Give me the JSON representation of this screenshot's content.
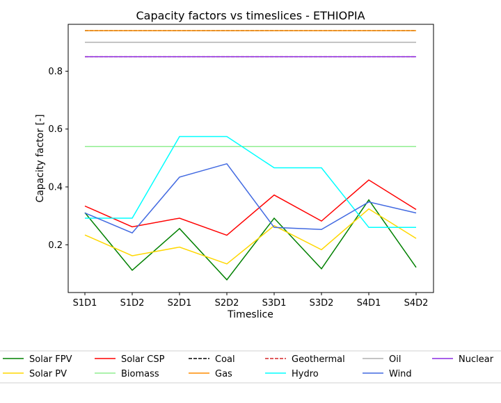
{
  "chart_data": {
    "type": "line",
    "title": "Capacity factors vs timeslices - ETHIOPIA",
    "xlabel": "Timeslice",
    "ylabel": "Capacity factor [-]",
    "categories": [
      "S1D1",
      "S1D2",
      "S2D1",
      "S2D2",
      "S3D1",
      "S3D2",
      "S4D1",
      "S4D2"
    ],
    "ylim": [
      0.035,
      0.962
    ],
    "yticks": [
      0.2,
      0.4,
      0.6,
      0.8
    ],
    "ytick_labels": [
      "0.2",
      "0.4",
      "0.6",
      "0.8"
    ],
    "grid": false,
    "legend_position": "bottom",
    "series": [
      {
        "name": "Solar FPV",
        "color": "#008000",
        "dash": "solid",
        "values": [
          0.311,
          0.112,
          0.256,
          0.079,
          0.292,
          0.117,
          0.355,
          0.122
        ]
      },
      {
        "name": "Solar PV",
        "color": "#ffd700",
        "dash": "solid",
        "values": [
          0.234,
          0.162,
          0.192,
          0.134,
          0.266,
          0.183,
          0.324,
          0.222
        ]
      },
      {
        "name": "Solar CSP",
        "color": "#ff0000",
        "dash": "solid",
        "values": [
          0.334,
          0.262,
          0.292,
          0.233,
          0.372,
          0.282,
          0.424,
          0.322
        ]
      },
      {
        "name": "Biomass",
        "color": "#90ee90",
        "dash": "solid",
        "values": [
          0.54,
          0.54,
          0.54,
          0.54,
          0.54,
          0.54,
          0.54,
          0.54
        ]
      },
      {
        "name": "Coal",
        "color": "#000000",
        "dash": "dashed",
        "values": [
          0.94,
          0.94,
          0.94,
          0.94,
          0.94,
          0.94,
          0.94,
          0.94
        ]
      },
      {
        "name": "Gas",
        "color": "#ff8c00",
        "dash": "solid",
        "values": [
          0.94,
          0.94,
          0.94,
          0.94,
          0.94,
          0.94,
          0.94,
          0.94
        ]
      },
      {
        "name": "Geothermal",
        "color": "#d62728",
        "dash": "dashed",
        "values": [
          0.85,
          0.85,
          0.85,
          0.85,
          0.85,
          0.85,
          0.85,
          0.85
        ]
      },
      {
        "name": "Hydro",
        "color": "#00ffff",
        "dash": "solid",
        "values": [
          0.292,
          0.292,
          0.574,
          0.574,
          0.466,
          0.466,
          0.26,
          0.26
        ]
      },
      {
        "name": "Oil",
        "color": "#b0b0b0",
        "dash": "solid",
        "values": [
          0.9,
          0.9,
          0.9,
          0.9,
          0.9,
          0.9,
          0.9,
          0.9
        ]
      },
      {
        "name": "Wind",
        "color": "#4169e1",
        "dash": "solid",
        "values": [
          0.31,
          0.241,
          0.434,
          0.48,
          0.26,
          0.253,
          0.348,
          0.31
        ]
      },
      {
        "name": "Nuclear",
        "color": "#8a2be2",
        "dash": "solid",
        "values": [
          0.85,
          0.85,
          0.85,
          0.85,
          0.85,
          0.85,
          0.85,
          0.85
        ]
      }
    ]
  }
}
